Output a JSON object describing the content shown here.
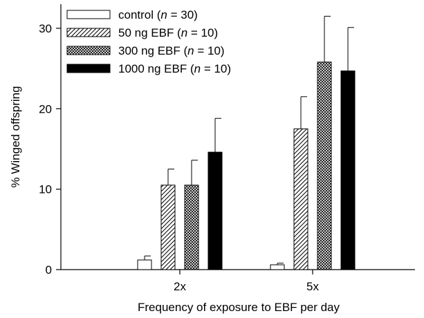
{
  "chart_data": {
    "type": "bar",
    "title": "",
    "xlabel": "Frequency of exposure to EBF per day",
    "ylabel": "% Winged offspring",
    "categories": [
      "2x",
      "5x"
    ],
    "ylim": [
      0,
      33
    ],
    "yticks": [
      0,
      10,
      20,
      30
    ],
    "grid": false,
    "legend_position": "top-left",
    "series": [
      {
        "name": "control (n = 30)",
        "label_main": "control (",
        "label_n": "n",
        "label_rest": " = 30)",
        "pattern": "empty",
        "values": [
          1.2,
          0.6
        ],
        "errors": [
          0.5,
          0.2
        ]
      },
      {
        "name": "50 ng EBF (n = 10)",
        "label_main": "50 ng EBF (",
        "label_n": "n",
        "label_rest": " = 10)",
        "pattern": "hatch",
        "values": [
          10.5,
          17.5
        ],
        "errors": [
          2.0,
          4.0
        ]
      },
      {
        "name": "300 ng EBF (n = 10)",
        "label_main": "300 ng EBF (",
        "label_n": "n",
        "label_rest": " = 10)",
        "pattern": "crosshatch",
        "values": [
          10.5,
          25.8
        ],
        "errors": [
          3.1,
          5.7
        ]
      },
      {
        "name": "1000 ng EBF (n = 10)",
        "label_main": "1000 ng EBF (",
        "label_n": "n",
        "label_rest": " = 10)",
        "pattern": "solid",
        "values": [
          14.6,
          24.7
        ],
        "errors": [
          4.2,
          5.4
        ]
      }
    ]
  }
}
